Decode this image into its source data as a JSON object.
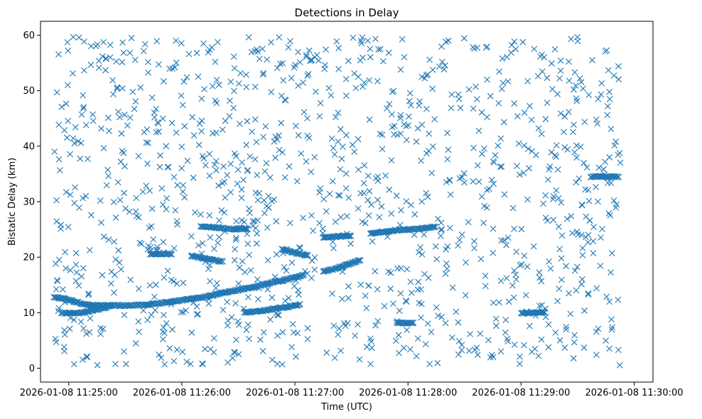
{
  "chart_data": {
    "type": "scatter",
    "title": "Detections in Delay",
    "xlabel": "Time (UTC)",
    "ylabel": "Bistatic Delay (km)",
    "marker": "x",
    "color": "#1f77b4",
    "xlim_seconds": [
      -15,
      310
    ],
    "ylim": [
      -2.5,
      62.5
    ],
    "x_ticks": [
      {
        "t": 0,
        "label": "2026-01-08 11:25:00"
      },
      {
        "t": 60,
        "label": "2026-01-08 11:26:00"
      },
      {
        "t": 120,
        "label": "2026-01-08 11:27:00"
      },
      {
        "t": 180,
        "label": "2026-01-08 11:28:00"
      },
      {
        "t": 240,
        "label": "2026-01-08 11:29:00"
      },
      {
        "t": 300,
        "label": "2026-01-08 11:30:00"
      }
    ],
    "y_ticks": [
      0,
      10,
      20,
      30,
      40,
      50,
      60
    ],
    "x_unit": "seconds after 2026-01-08 11:25:00",
    "time_range_seconds": [
      -8,
      293
    ],
    "delay_range_km": [
      0.5,
      59.7
    ],
    "clutter_count": 1150,
    "tracks": [
      {
        "name": "track-1",
        "points": [
          [
            -8,
            12.8
          ],
          [
            -4,
            12.6
          ],
          [
            0,
            12.3
          ],
          [
            5,
            11.8
          ],
          [
            10,
            11.4
          ],
          [
            20,
            11.3
          ],
          [
            30,
            11.3
          ],
          [
            40,
            11.4
          ],
          [
            50,
            11.8
          ],
          [
            55,
            12.0
          ],
          [
            60,
            12.2
          ],
          [
            70,
            12.7
          ],
          [
            80,
            13.4
          ],
          [
            90,
            14.1
          ],
          [
            100,
            14.8
          ],
          [
            110,
            15.6
          ],
          [
            120,
            16.3
          ],
          [
            125,
            16.8
          ]
        ]
      },
      {
        "name": "track-2",
        "points": [
          [
            -4,
            10.0
          ],
          [
            0,
            9.9
          ],
          [
            5,
            9.9
          ],
          [
            10,
            10.2
          ],
          [
            15,
            10.6
          ],
          [
            20,
            11.0
          ],
          [
            22,
            11.3
          ]
        ]
      },
      {
        "name": "track-3",
        "points": [
          [
            93,
            10.0
          ],
          [
            105,
            10.5
          ],
          [
            115,
            11.0
          ],
          [
            123,
            11.5
          ]
        ]
      },
      {
        "name": "track-4",
        "points": [
          [
            135,
            17.5
          ],
          [
            140,
            17.8
          ],
          [
            145,
            18.3
          ],
          [
            150,
            18.9
          ],
          [
            155,
            19.5
          ]
        ]
      },
      {
        "name": "track-5",
        "points": [
          [
            160,
            24.3
          ],
          [
            165,
            24.5
          ],
          [
            170,
            24.7
          ],
          [
            175,
            24.9
          ],
          [
            180,
            25.0
          ],
          [
            185,
            25.1
          ],
          [
            190,
            25.3
          ],
          [
            195,
            25.5
          ]
        ]
      },
      {
        "name": "track-6",
        "points": [
          [
            70,
            25.6
          ],
          [
            75,
            25.4
          ],
          [
            80,
            25.3
          ],
          [
            85,
            25.1
          ],
          [
            90,
            25.0
          ]
        ]
      },
      {
        "name": "track-7",
        "points": [
          [
            65,
            20.3
          ],
          [
            70,
            19.9
          ],
          [
            75,
            19.6
          ],
          [
            80,
            19.3
          ],
          [
            82,
            19.2
          ]
        ]
      },
      {
        "name": "track-8",
        "points": [
          [
            113,
            21.5
          ],
          [
            117,
            21.1
          ],
          [
            120,
            20.8
          ],
          [
            124,
            20.5
          ],
          [
            127,
            20.3
          ]
        ]
      },
      {
        "name": "track-9",
        "points": [
          [
            135,
            23.6
          ],
          [
            140,
            23.7
          ],
          [
            145,
            23.8
          ],
          [
            150,
            23.9
          ]
        ]
      },
      {
        "name": "track-10",
        "points": [
          [
            277,
            34.5
          ],
          [
            283,
            34.5
          ],
          [
            289,
            34.5
          ],
          [
            292,
            34.5
          ]
        ]
      },
      {
        "name": "track-11",
        "points": [
          [
            43,
            20.5
          ],
          [
            50,
            20.6
          ],
          [
            55,
            20.6
          ]
        ]
      },
      {
        "name": "track-12",
        "points": [
          [
            90,
            25.2
          ],
          [
            95,
            25.1
          ]
        ]
      },
      {
        "name": "track-13",
        "points": [
          [
            240,
            9.9
          ],
          [
            247,
            10.0
          ],
          [
            253,
            10.1
          ]
        ]
      },
      {
        "name": "track-14",
        "points": [
          [
            174,
            8.2
          ],
          [
            180,
            8.1
          ],
          [
            183,
            8.1
          ]
        ]
      }
    ]
  }
}
